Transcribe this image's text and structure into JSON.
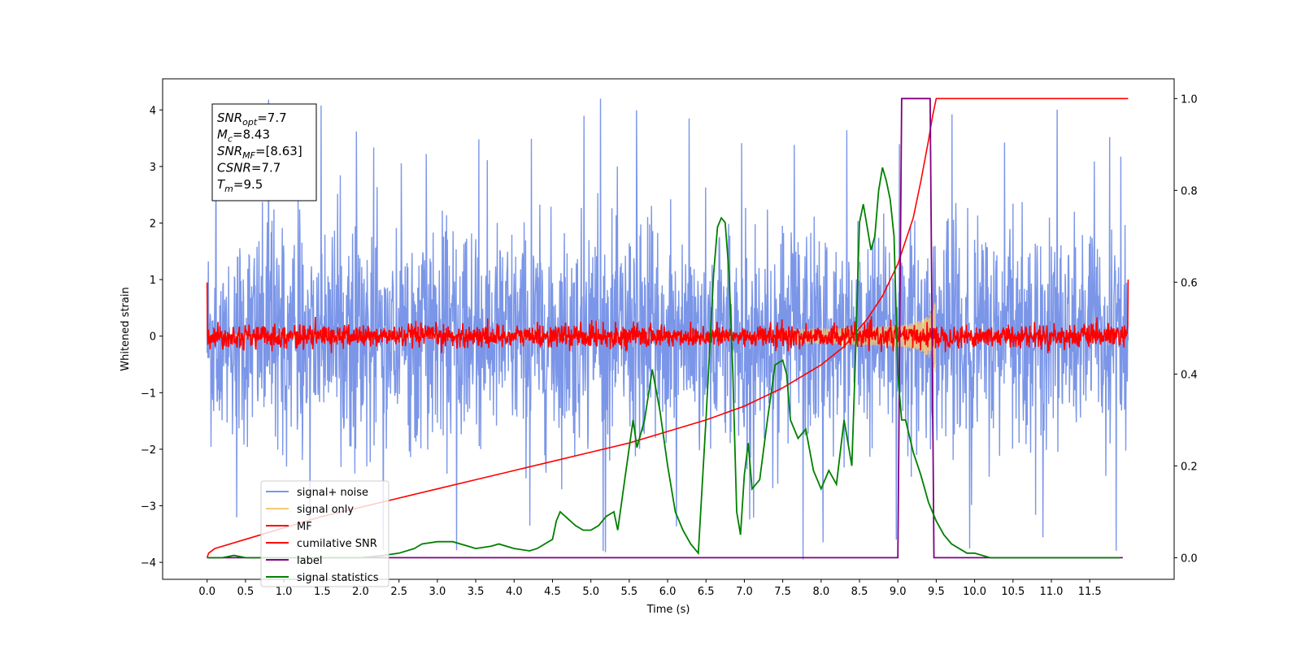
{
  "chart_data": {
    "type": "line",
    "xlabel": "Time (s)",
    "ylabel": "Whitened strain",
    "xlim": [
      -0.58,
      12.6
    ],
    "ylim_left": [
      -4.3,
      4.55
    ],
    "ylim_right": [
      -0.047,
      1.043
    ],
    "x_ticks": [
      0.0,
      0.5,
      1.0,
      1.5,
      2.0,
      2.5,
      3.0,
      3.5,
      4.0,
      4.5,
      5.0,
      5.5,
      6.0,
      6.5,
      7.0,
      7.5,
      8.0,
      8.5,
      9.0,
      9.5,
      10.0,
      10.5,
      11.0,
      11.5
    ],
    "x_tick_labels": [
      "0.0",
      "0.5",
      "1.0",
      "1.5",
      "2.0",
      "2.5",
      "3.0",
      "3.5",
      "4.0",
      "4.5",
      "5.0",
      "5.5",
      "6.0",
      "6.5",
      "7.0",
      "7.5",
      "8.0",
      "8.5",
      "9.0",
      "9.5",
      "10.0",
      "10.5",
      "11.0",
      "11.5"
    ],
    "y_ticks_left": [
      -4,
      -3,
      -2,
      -1,
      0,
      1,
      2,
      3,
      4
    ],
    "y_tick_labels_left": [
      "−4",
      "−3",
      "−2",
      "−1",
      "0",
      "1",
      "2",
      "3",
      "4"
    ],
    "y_ticks_right": [
      0.0,
      0.2,
      0.4,
      0.6,
      0.8,
      1.0
    ],
    "y_tick_labels_right": [
      "0.0",
      "0.2",
      "0.4",
      "0.6",
      "0.8",
      "1.0"
    ],
    "legend_position": "lower-left",
    "grid": false,
    "annotation": {
      "lines": [
        {
          "name": "SNR",
          "sub": "opt",
          "value": "7.7"
        },
        {
          "name": "M",
          "sub": "c",
          "value": "8.43"
        },
        {
          "name": "SNR",
          "sub": "MF",
          "value": "[8.63]"
        },
        {
          "name": "CSNR",
          "sub": "",
          "value": "7.7"
        },
        {
          "name": "T",
          "sub": "m",
          "value": "9.5"
        }
      ]
    },
    "series": [
      {
        "name": "signal+ noise",
        "axis": "left",
        "color": "#7b96e8",
        "style": "noise",
        "x_range": [
          0.0,
          12.0
        ],
        "envelope": 1.6,
        "peak": 4.2,
        "min": -3.95
      },
      {
        "name": "signal only",
        "axis": "left",
        "color": "#f5c777",
        "style": "chirp",
        "merger_time": 9.5,
        "amplitude_at_merger": 0.8
      },
      {
        "name": "MF",
        "axis": "left",
        "color": "#ff0000",
        "style": "noise",
        "x_range": [
          0.0,
          12.0
        ],
        "envelope": 0.2,
        "edge_values": [
          0.95,
          1.0
        ]
      },
      {
        "name": "cumilative SNR",
        "axis": "right",
        "color": "#ff0000",
        "x": [
          0.0,
          0.02,
          0.1,
          0.5,
          1.0,
          1.5,
          2.0,
          2.5,
          3.0,
          3.5,
          4.0,
          4.5,
          5.0,
          5.5,
          6.0,
          6.5,
          7.0,
          7.5,
          8.0,
          8.3,
          8.6,
          8.8,
          9.0,
          9.2,
          9.3,
          9.4,
          9.45,
          9.5,
          10.0,
          11.0,
          12.0
        ],
        "y": [
          0.0,
          0.01,
          0.02,
          0.04,
          0.065,
          0.09,
          0.11,
          0.13,
          0.15,
          0.17,
          0.19,
          0.21,
          0.23,
          0.25,
          0.275,
          0.3,
          0.33,
          0.37,
          0.42,
          0.46,
          0.52,
          0.57,
          0.64,
          0.74,
          0.82,
          0.91,
          0.96,
          1.0,
          1.0,
          1.0,
          1.0
        ]
      },
      {
        "name": "label",
        "axis": "right",
        "color": "#800080",
        "x": [
          0.0,
          9.0,
          9.05,
          9.42,
          9.47,
          11.93
        ],
        "y": [
          0.0,
          0.0,
          1.0,
          1.0,
          0.0,
          0.0
        ]
      },
      {
        "name": "signal statistics",
        "axis": "right",
        "color": "#008000",
        "x": [
          0.0,
          0.2,
          0.35,
          0.5,
          0.8,
          1.2,
          1.5,
          1.8,
          2.0,
          2.3,
          2.5,
          2.7,
          2.8,
          3.0,
          3.2,
          3.4,
          3.5,
          3.7,
          3.8,
          4.0,
          4.2,
          4.3,
          4.5,
          4.55,
          4.6,
          4.7,
          4.8,
          4.9,
          5.0,
          5.1,
          5.2,
          5.3,
          5.35,
          5.45,
          5.55,
          5.6,
          5.7,
          5.8,
          5.9,
          6.0,
          6.1,
          6.2,
          6.3,
          6.4,
          6.5,
          6.6,
          6.65,
          6.7,
          6.75,
          6.8,
          6.85,
          6.9,
          6.95,
          7.0,
          7.05,
          7.1,
          7.2,
          7.3,
          7.4,
          7.5,
          7.55,
          7.6,
          7.7,
          7.8,
          7.9,
          8.0,
          8.1,
          8.2,
          8.3,
          8.4,
          8.45,
          8.5,
          8.55,
          8.6,
          8.65,
          8.7,
          8.75,
          8.8,
          8.85,
          8.9,
          8.95,
          9.0,
          9.05,
          9.1,
          9.2,
          9.3,
          9.4,
          9.5,
          9.6,
          9.7,
          9.9,
          10.0,
          10.2,
          10.5,
          11.0,
          11.3,
          11.5,
          11.9
        ],
        "y": [
          0.0,
          0.0,
          0.005,
          0.0,
          0.0,
          0.0,
          0.0,
          0.0,
          0.0,
          0.005,
          0.01,
          0.02,
          0.03,
          0.035,
          0.035,
          0.025,
          0.02,
          0.025,
          0.03,
          0.02,
          0.015,
          0.02,
          0.04,
          0.08,
          0.1,
          0.085,
          0.07,
          0.06,
          0.06,
          0.07,
          0.09,
          0.1,
          0.06,
          0.18,
          0.3,
          0.24,
          0.3,
          0.41,
          0.32,
          0.2,
          0.1,
          0.06,
          0.03,
          0.01,
          0.3,
          0.62,
          0.72,
          0.74,
          0.73,
          0.62,
          0.4,
          0.1,
          0.05,
          0.18,
          0.25,
          0.15,
          0.17,
          0.3,
          0.42,
          0.43,
          0.4,
          0.3,
          0.26,
          0.28,
          0.19,
          0.15,
          0.19,
          0.16,
          0.3,
          0.2,
          0.45,
          0.73,
          0.77,
          0.72,
          0.67,
          0.7,
          0.8,
          0.85,
          0.82,
          0.78,
          0.7,
          0.4,
          0.3,
          0.3,
          0.23,
          0.18,
          0.12,
          0.08,
          0.05,
          0.03,
          0.01,
          0.01,
          0.0,
          0.0,
          0.0,
          0.0,
          0.0,
          0.0
        ]
      }
    ]
  }
}
